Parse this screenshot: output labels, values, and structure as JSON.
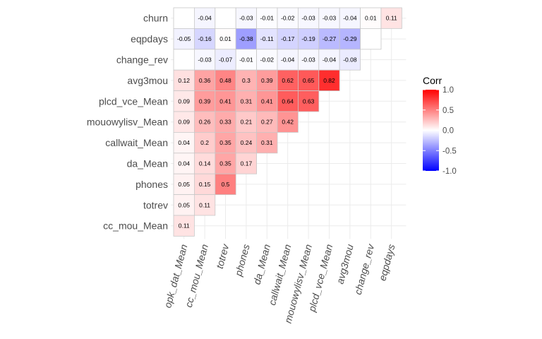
{
  "chart_data": {
    "type": "heatmap",
    "rows": [
      "churn",
      "eqpdays",
      "change_rev",
      "avg3mou",
      "plcd_vce_Mean",
      "mouowylisv_Mean",
      "callwait_Mean",
      "da_Mean",
      "phones",
      "totrev",
      "cc_mou_Mean"
    ],
    "columns": [
      "opk_dat_Mean",
      "cc_mou_Mean",
      "totrev",
      "phones",
      "da_Mean",
      "callwait_Mean",
      "mouowylisv_Mean",
      "plcd_vce_Mean",
      "avg3mou",
      "change_rev",
      "eqpdays"
    ],
    "values": [
      [
        null,
        -0.04,
        null,
        -0.03,
        -0.01,
        -0.02,
        -0.03,
        -0.03,
        -0.04,
        0.01,
        0.11
      ],
      [
        -0.05,
        -0.16,
        0.01,
        -0.38,
        -0.11,
        -0.17,
        -0.19,
        -0.27,
        -0.29,
        null
      ],
      [
        null,
        -0.03,
        -0.07,
        -0.01,
        -0.02,
        -0.04,
        -0.03,
        -0.04,
        -0.08
      ],
      [
        0.12,
        0.36,
        0.48,
        0.3,
        0.39,
        0.62,
        0.65,
        0.82
      ],
      [
        0.09,
        0.39,
        0.41,
        0.31,
        0.41,
        0.64,
        0.63
      ],
      [
        0.09,
        0.26,
        0.33,
        0.21,
        0.27,
        0.42
      ],
      [
        0.04,
        0.2,
        0.35,
        0.24,
        0.31
      ],
      [
        0.04,
        0.14,
        0.35,
        0.17
      ],
      [
        0.05,
        0.15,
        0.5
      ],
      [
        0.05,
        0.11
      ],
      [
        0.11
      ]
    ],
    "legend": {
      "title": "Corr",
      "ticks": [
        "1.0",
        "0.5",
        "0.0",
        "-0.5",
        "-1.0"
      ],
      "tick_values": [
        1,
        0.5,
        0,
        -0.5,
        -1
      ],
      "range": [
        -1,
        1
      ],
      "placement": "right"
    },
    "colors": {
      "high": "#ff0000",
      "mid": "#ffffff",
      "low": "#0000ff",
      "grid": "#ebebeb",
      "tile_border": "#c8c8c8"
    },
    "grid": true
  }
}
